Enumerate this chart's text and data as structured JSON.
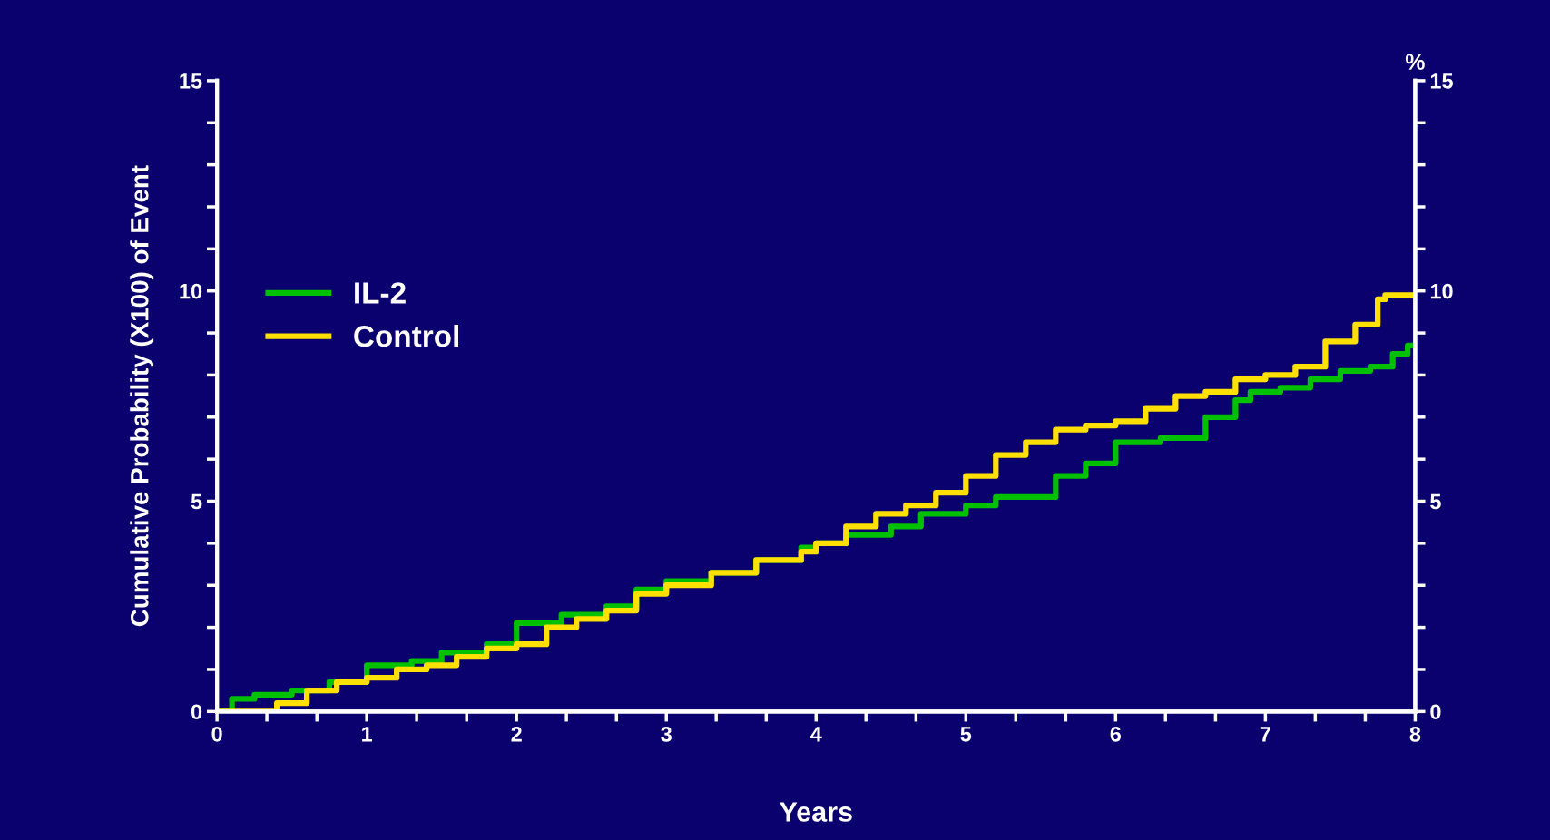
{
  "chart_data": {
    "type": "step",
    "xlabel": "Years",
    "ylabel": "Cumulative Probability (X100) of Event",
    "y2label": "%",
    "xlim": [
      0,
      8
    ],
    "ylim": [
      0,
      15
    ],
    "y2lim": [
      0,
      15
    ],
    "xticks": [
      0,
      {
        "value": 0.333,
        "label": null
      },
      {
        "value": 0.667,
        "label": null
      },
      1,
      {
        "value": 1.333,
        "label": null
      },
      {
        "value": 1.667,
        "label": null
      },
      2,
      {
        "value": 2.333,
        "label": null
      },
      {
        "value": 2.667,
        "label": null
      },
      3,
      {
        "value": 3.333,
        "label": null
      },
      {
        "value": 3.667,
        "label": null
      },
      4,
      {
        "value": 4.333,
        "label": null
      },
      {
        "value": 4.667,
        "label": null
      },
      5,
      {
        "value": 5.333,
        "label": null
      },
      {
        "value": 5.667,
        "label": null
      },
      6,
      {
        "value": 6.333,
        "label": null
      },
      {
        "value": 6.667,
        "label": null
      },
      7,
      {
        "value": 7.333,
        "label": null
      },
      {
        "value": 7.667,
        "label": null
      },
      8
    ],
    "yticks": [
      0,
      {
        "value": 1,
        "label": null
      },
      {
        "value": 2,
        "label": null
      },
      {
        "value": 3,
        "label": null
      },
      {
        "value": 4,
        "label": null
      },
      5,
      {
        "value": 6,
        "label": null
      },
      {
        "value": 7,
        "label": null
      },
      {
        "value": 8,
        "label": null
      },
      {
        "value": 9,
        "label": null
      },
      10,
      {
        "value": 11,
        "label": null
      },
      {
        "value": 12,
        "label": null
      },
      {
        "value": 13,
        "label": null
      },
      {
        "value": 14,
        "label": null
      },
      15
    ],
    "y2ticks": [
      0,
      {
        "value": 1,
        "label": null
      },
      {
        "value": 2,
        "label": null
      },
      {
        "value": 3,
        "label": null
      },
      {
        "value": 4,
        "label": null
      },
      5,
      {
        "value": 6,
        "label": null
      },
      {
        "value": 7,
        "label": null
      },
      {
        "value": 8,
        "label": null
      },
      {
        "value": 9,
        "label": null
      },
      10,
      {
        "value": 11,
        "label": null
      },
      {
        "value": 12,
        "label": null
      },
      {
        "value": 13,
        "label": null
      },
      {
        "value": 14,
        "label": null
      },
      15
    ],
    "legend": "left",
    "grid": false,
    "marker": "none",
    "line_style": "solid",
    "series": [
      {
        "name": "IL-2",
        "color": "#00c000",
        "x": [
          0,
          0.1,
          0.25,
          0.5,
          0.75,
          1,
          1.3,
          1.5,
          1.8,
          2,
          2.3,
          2.6,
          2.8,
          3,
          3.3,
          3.6,
          3.9,
          4,
          4.2,
          4.5,
          4.7,
          5,
          5.2,
          5.4,
          5.6,
          5.8,
          6,
          6.3,
          6.6,
          6.8,
          6.9,
          7.1,
          7.3,
          7.5,
          7.7,
          7.85,
          7.95,
          8
        ],
        "values": [
          0,
          0.3,
          0.4,
          0.5,
          0.7,
          1.1,
          1.2,
          1.4,
          1.6,
          2.1,
          2.3,
          2.5,
          2.9,
          3.1,
          3.3,
          3.6,
          3.9,
          4.0,
          4.2,
          4.4,
          4.7,
          4.9,
          5.1,
          5.1,
          5.6,
          5.9,
          6.4,
          6.5,
          7.0,
          7.4,
          7.6,
          7.7,
          7.9,
          8.1,
          8.2,
          8.5,
          8.7,
          8.7
        ]
      },
      {
        "name": "Control",
        "color": "#ffe000",
        "x": [
          0,
          0.2,
          0.4,
          0.6,
          0.8,
          1,
          1.2,
          1.4,
          1.6,
          1.8,
          2,
          2.2,
          2.4,
          2.6,
          2.8,
          3,
          3.3,
          3.6,
          3.9,
          4,
          4.2,
          4.4,
          4.6,
          4.8,
          5,
          5.2,
          5.4,
          5.6,
          5.8,
          6,
          6.2,
          6.4,
          6.6,
          6.8,
          7,
          7.2,
          7.4,
          7.6,
          7.75,
          7.8,
          8
        ],
        "values": [
          0,
          0,
          0.2,
          0.5,
          0.7,
          0.8,
          1.0,
          1.1,
          1.3,
          1.5,
          1.6,
          2.0,
          2.2,
          2.4,
          2.8,
          3.0,
          3.3,
          3.6,
          3.8,
          4.0,
          4.4,
          4.7,
          4.9,
          5.2,
          5.6,
          6.1,
          6.4,
          6.7,
          6.8,
          6.9,
          7.2,
          7.5,
          7.6,
          7.9,
          8.0,
          8.2,
          8.8,
          9.2,
          9.8,
          9.9,
          9.9
        ]
      }
    ]
  }
}
